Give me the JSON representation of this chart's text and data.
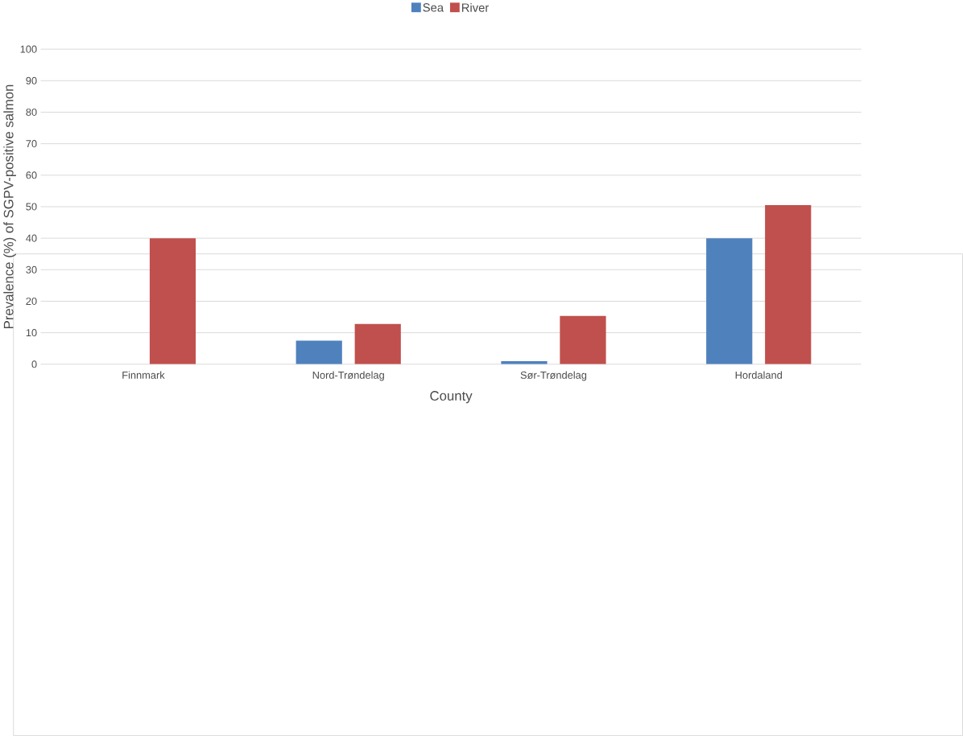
{
  "chart_data": {
    "type": "bar",
    "xlabel": "County",
    "ylabel": "Prevalence (%) of SGPV-positive salmon",
    "categories": [
      "Finnmark",
      "Nord-Trøndelag",
      "Sør-Trøndelag",
      "Hordaland"
    ],
    "series": [
      {
        "name": "Sea",
        "color": "#4f81bd",
        "values": [
          0,
          7.5,
          1,
          40
        ]
      },
      {
        "name": "River",
        "color": "#c0504d",
        "values": [
          40,
          12.8,
          15.3,
          50.5
        ]
      }
    ],
    "ylim": [
      0,
      100
    ],
    "yticks": [
      0,
      10,
      20,
      30,
      40,
      50,
      60,
      70,
      80,
      90,
      100
    ],
    "grid": "y",
    "legend": "top"
  }
}
